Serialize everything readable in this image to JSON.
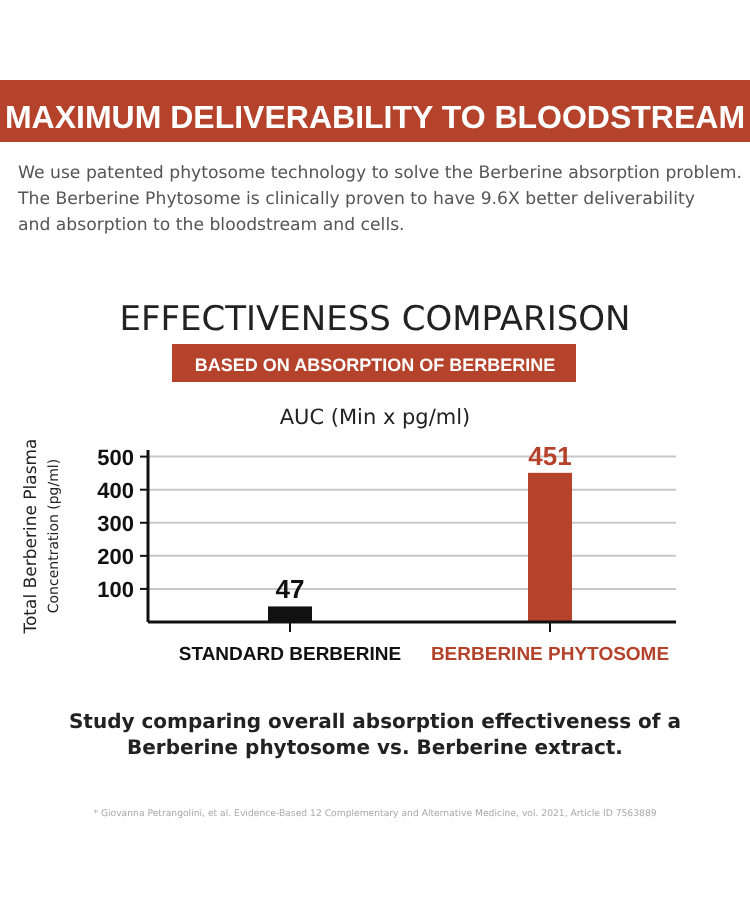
{
  "chart_data": {
    "type": "bar",
    "title": "EFFECTIVENESS COMPARISON",
    "subtitle": "BASED ON ABSORPTION OF BERBERINE",
    "ylabel": "Total Berberine Plasma\nConcentration (pg/ml)",
    "annotations": [
      "MAXIMUM DELIVERABILITY TO BLOODSTREAM",
      "We use patented phytosome technology to solve the Berberine absorption problem.\nThe Berberine Phytosome is clinically proven to have 9.6X better deliverability\nand absorption to the bloodstream and cells.",
      "AUC (Min x pg/ml)",
      "Study comparing overall absorption effectiveness of a\nBerberine phytosome vs. Berberine extract.",
      "* Giovanna Petrangolini, et al. Evidence-Based 12 Complementary and Alternative Medicine, vol. 2021, Article ID 7563889"
    ],
    "categories": [
      "STANDARD BERBERINE",
      "BERBERINE PHYTOSOME"
    ],
    "values": [
      47,
      451
    ],
    "colors": [
      "#111111",
      "#b5432c"
    ],
    "ylim": [
      0,
      520
    ],
    "yticks": [
      100,
      200,
      300,
      400,
      500
    ],
    "grid": "y",
    "data_labels": true
  }
}
